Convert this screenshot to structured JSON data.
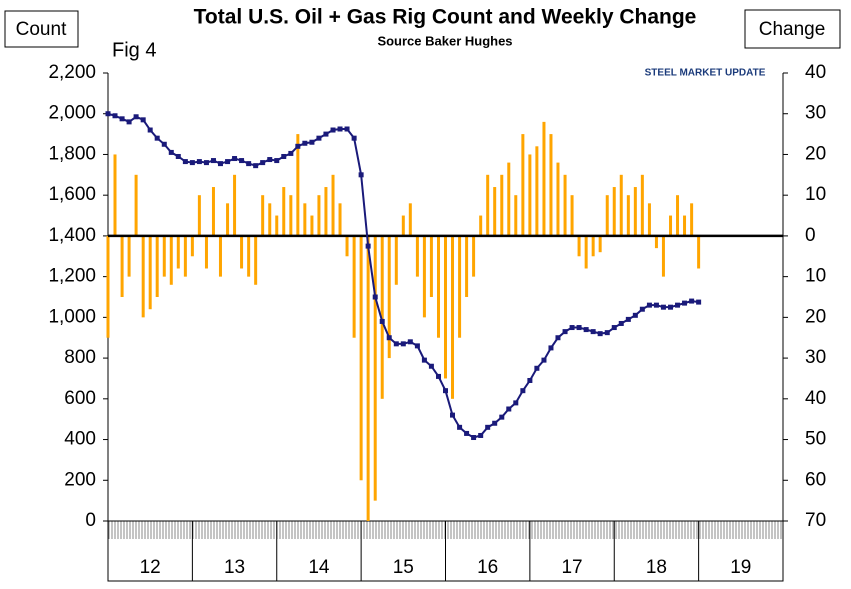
{
  "chart_data": {
    "type": "bar-line",
    "title": "Total U.S. Oil + Gas Rig Count and Weekly Change",
    "subtitle": "Source Baker Hughes",
    "y_label": "Count",
    "y2_label": "Change",
    "annotation": "Fig 4",
    "logo": "STEEL MARKET UPDATE",
    "x": [
      12.0,
      12.083,
      12.167,
      12.25,
      12.333,
      12.417,
      12.5,
      12.583,
      12.667,
      12.75,
      12.833,
      12.917,
      13.0,
      13.083,
      13.167,
      13.25,
      13.333,
      13.417,
      13.5,
      13.583,
      13.667,
      13.75,
      13.833,
      13.917,
      14.0,
      14.083,
      14.167,
      14.25,
      14.333,
      14.417,
      14.5,
      14.583,
      14.667,
      14.75,
      14.833,
      14.917,
      15.0,
      15.083,
      15.167,
      15.25,
      15.333,
      15.417,
      15.5,
      15.583,
      15.667,
      15.75,
      15.833,
      15.917,
      16.0,
      16.083,
      16.167,
      16.25,
      16.333,
      16.417,
      16.5,
      16.583,
      16.667,
      16.75,
      16.833,
      16.917,
      17.0,
      17.083,
      17.167,
      17.25,
      17.333,
      17.417,
      17.5,
      17.583,
      17.667,
      17.75,
      17.833,
      17.917,
      18.0,
      18.083,
      18.167,
      18.25,
      18.333,
      18.417,
      18.5,
      18.583,
      18.667,
      18.75,
      18.833,
      18.917,
      19.0
    ],
    "series": [
      {
        "name": "Weekly Change",
        "color": "#ffa500",
        "axis": "y2",
        "kind": "bar",
        "values": [
          -25,
          20,
          -15,
          -10,
          15,
          -20,
          -18,
          -15,
          -10,
          -12,
          -8,
          -10,
          -5,
          10,
          -8,
          12,
          -10,
          8,
          15,
          -8,
          -10,
          -12,
          10,
          8,
          5,
          12,
          10,
          25,
          8,
          5,
          10,
          12,
          15,
          8,
          -5,
          -25,
          -60,
          -70,
          -65,
          -40,
          -30,
          -12,
          5,
          8,
          -10,
          -20,
          -15,
          -25,
          -35,
          -40,
          -25,
          -15,
          -10,
          5,
          15,
          12,
          15,
          18,
          10,
          25,
          20,
          22,
          28,
          25,
          18,
          15,
          10,
          -5,
          -8,
          -5,
          -4,
          10,
          12,
          15,
          10,
          12,
          15,
          8,
          -3,
          -10,
          5,
          10,
          5,
          8,
          -8
        ]
      },
      {
        "name": "Rig Count",
        "color": "#1a1a7a",
        "kind": "line",
        "values": [
          2000,
          1990,
          1975,
          1960,
          1985,
          1970,
          1920,
          1880,
          1850,
          1810,
          1790,
          1765,
          1760,
          1765,
          1760,
          1770,
          1755,
          1765,
          1780,
          1770,
          1755,
          1745,
          1760,
          1775,
          1770,
          1790,
          1805,
          1840,
          1855,
          1860,
          1880,
          1900,
          1920,
          1925,
          1925,
          1880,
          1700,
          1350,
          1100,
          980,
          900,
          870,
          870,
          880,
          860,
          790,
          760,
          710,
          640,
          520,
          460,
          430,
          410,
          420,
          460,
          480,
          510,
          550,
          580,
          640,
          690,
          750,
          790,
          850,
          900,
          930,
          950,
          950,
          940,
          930,
          920,
          925,
          950,
          970,
          990,
          1010,
          1040,
          1060,
          1060,
          1050,
          1050,
          1060,
          1070,
          1080,
          1075
        ]
      }
    ],
    "xlim": [
      12,
      20
    ],
    "xticks": [
      {
        "value": 12.5,
        "label": "12"
      },
      {
        "value": 13.5,
        "label": "13"
      },
      {
        "value": 14.5,
        "label": "14"
      },
      {
        "value": 15.5,
        "label": "15"
      },
      {
        "value": 16.5,
        "label": "16"
      },
      {
        "value": 17.5,
        "label": "17"
      },
      {
        "value": 18.5,
        "label": "18"
      },
      {
        "value": 19.5,
        "label": "19"
      }
    ],
    "ylim": [
      0,
      2200
    ],
    "yticks": [
      0,
      200,
      400,
      600,
      800,
      {
        "value": 1000,
        "label": "1,000"
      },
      {
        "value": 1200,
        "label": "1,200"
      },
      {
        "value": 1400,
        "label": "1,400"
      },
      {
        "value": 1600,
        "label": "1,600"
      },
      {
        "value": 1800,
        "label": "1,800"
      },
      {
        "value": 2000,
        "label": "2,000"
      },
      {
        "value": 2200,
        "label": "2,200"
      }
    ],
    "y2lim": [
      -70,
      40
    ],
    "y2ticks": [
      40,
      30,
      20,
      10,
      0,
      {
        "value": -10,
        "label": "10"
      },
      {
        "value": -20,
        "label": "20"
      },
      {
        "value": -30,
        "label": "30"
      },
      {
        "value": -40,
        "label": "40"
      },
      {
        "value": -50,
        "label": "50"
      },
      {
        "value": -60,
        "label": "60"
      },
      {
        "value": -70,
        "label": "70"
      }
    ],
    "negative_tick_color": "#ff0000",
    "grid": false
  }
}
